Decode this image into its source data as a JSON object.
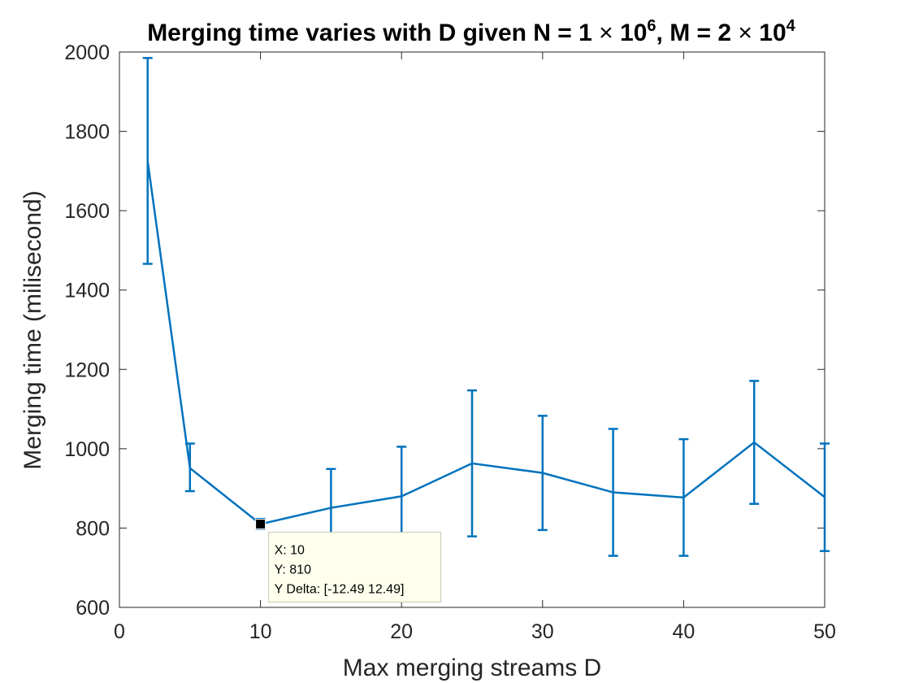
{
  "chart_data": {
    "type": "line",
    "title": {
      "prefix": "Merging time varies with D given N = 1 ",
      "times1": "×",
      "base1": " 10",
      "exp1": "6",
      "mid": ", M = 2 ",
      "times2": "×",
      "base2": " 10",
      "exp2": "4"
    },
    "xlabel": "Max merging streams D",
    "ylabel": "Merging time (milisecond)",
    "xlim": [
      0,
      50
    ],
    "ylim": [
      600,
      2000
    ],
    "xticks": [
      0,
      10,
      20,
      30,
      40,
      50
    ],
    "yticks": [
      600,
      800,
      1000,
      1200,
      1400,
      1600,
      1800,
      2000
    ],
    "grid": false,
    "series": [
      {
        "name": "Merging time",
        "color": "#0072BD",
        "x": [
          2,
          5,
          10,
          15,
          20,
          25,
          30,
          35,
          40,
          45,
          50
        ],
        "y": [
          1725,
          951,
          810,
          851,
          880,
          963,
          939,
          890,
          877,
          1016,
          878
        ],
        "err_low": [
          1466,
          893,
          798,
          752,
          752,
          779,
          795,
          730,
          730,
          861,
          742
        ],
        "err_high": [
          1985,
          1013,
          823,
          949,
          1005,
          1147,
          1083,
          1050,
          1024,
          1171,
          1013
        ]
      }
    ],
    "datatip": {
      "x": 10,
      "y": 810,
      "lines": [
        "X: 10",
        "Y: 810",
        "Y Delta: [-12.49 12.49]"
      ],
      "background": "#FFFFEE",
      "border": "#C8C8B4"
    }
  }
}
